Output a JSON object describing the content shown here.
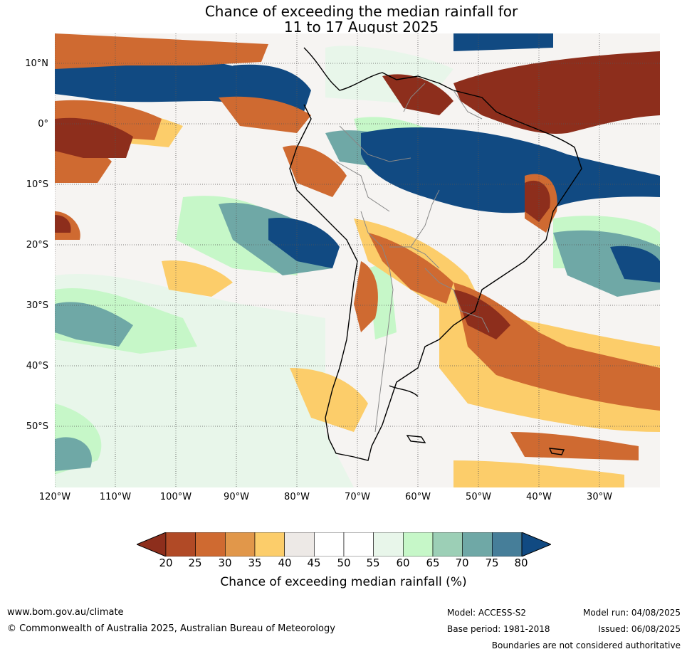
{
  "title": {
    "line1": "Chance of exceeding the median rainfall for",
    "line2": "11 to 17 August 2025"
  },
  "map": {
    "lat_labels": [
      "10°N",
      "0°",
      "10°S",
      "20°S",
      "30°S",
      "40°S",
      "50°S"
    ],
    "lon_labels": [
      "120°W",
      "110°W",
      "100°W",
      "90°W",
      "80°W",
      "70°W",
      "60°W",
      "50°W",
      "40°W",
      "30°W"
    ],
    "lat_range": [
      -60,
      15
    ],
    "lon_range": [
      -120,
      -20
    ],
    "grid": "dotted"
  },
  "colorbar": {
    "ticks": [
      "20",
      "25",
      "30",
      "35",
      "40",
      "45",
      "50",
      "55",
      "60",
      "65",
      "70",
      "75",
      "80"
    ],
    "colors": [
      "#8d2e1c",
      "#b14a26",
      "#cf6a31",
      "#e1974a",
      "#fccd6a",
      "#ede9e6",
      "#ffffff",
      "#ffffff",
      "#e8f6ea",
      "#c6f7c8",
      "#9ccfb6",
      "#6fa8a6",
      "#467e99",
      "#114a82"
    ],
    "label": "Chance of exceeding median rainfall (%)"
  },
  "footer": {
    "website": "www.bom.gov.au/climate",
    "copyright": "© Commonwealth of Australia 2025, Australian Bureau of Meteorology",
    "model": "Model: ACCESS-S2",
    "base_period": "Base period: 1981-2018",
    "model_run": "Model run: 04/08/2025",
    "issued": "Issued: 06/08/2025",
    "disclaimer": "Boundaries are not considered authoritative"
  }
}
